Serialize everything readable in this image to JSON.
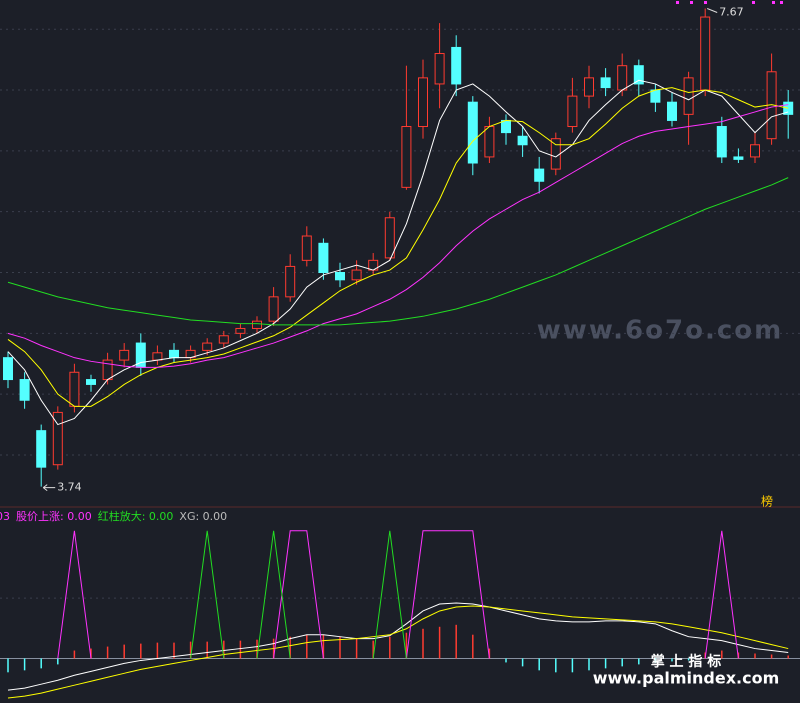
{
  "chart_data": [
    {
      "type": "candlestick",
      "open": [
        4.8,
        4.62,
        4.2,
        3.92,
        4.4,
        4.62,
        4.62,
        4.78,
        4.92,
        4.78,
        4.86,
        4.8,
        4.86,
        4.92,
        5.0,
        5.04,
        5.1,
        5.3,
        5.6,
        5.74,
        5.5,
        5.44,
        5.52,
        5.62,
        6.2,
        6.7,
        7.05,
        7.35,
        6.9,
        6.45,
        6.75,
        6.62,
        6.35,
        6.35,
        6.7,
        6.95,
        7.1,
        7.0,
        7.2,
        7.0,
        6.9,
        6.8,
        7.0,
        6.7,
        6.45,
        6.45,
        6.6,
        6.9
      ],
      "high": [
        4.85,
        4.68,
        4.25,
        4.4,
        4.75,
        4.66,
        4.84,
        4.92,
        5.0,
        4.9,
        4.92,
        4.9,
        4.96,
        5.02,
        5.08,
        5.14,
        5.38,
        5.65,
        5.88,
        5.78,
        5.58,
        5.6,
        5.66,
        6.0,
        7.2,
        7.25,
        7.55,
        7.45,
        6.95,
        6.78,
        6.8,
        6.7,
        6.45,
        6.65,
        7.1,
        7.2,
        7.18,
        7.3,
        7.25,
        7.05,
        6.98,
        7.15,
        7.67,
        6.78,
        6.52,
        6.65,
        7.3,
        7.0
      ],
      "low": [
        4.55,
        4.38,
        3.74,
        3.88,
        4.35,
        4.52,
        4.58,
        4.72,
        4.65,
        4.74,
        4.76,
        4.76,
        4.82,
        4.88,
        4.96,
        5.0,
        5.06,
        5.26,
        5.55,
        5.44,
        5.38,
        5.4,
        5.48,
        5.6,
        6.18,
        6.6,
        6.85,
        6.95,
        6.3,
        6.4,
        6.55,
        6.45,
        6.15,
        6.3,
        6.65,
        6.85,
        6.95,
        6.95,
        6.95,
        6.82,
        6.7,
        6.55,
        6.95,
        6.4,
        6.4,
        6.4,
        6.55,
        6.6
      ],
      "close": [
        4.62,
        4.45,
        3.9,
        4.35,
        4.68,
        4.58,
        4.78,
        4.86,
        4.72,
        4.84,
        4.8,
        4.86,
        4.92,
        4.98,
        5.04,
        5.1,
        5.3,
        5.55,
        5.8,
        5.5,
        5.44,
        5.52,
        5.6,
        5.95,
        6.7,
        7.1,
        7.3,
        7.05,
        6.4,
        6.7,
        6.65,
        6.55,
        6.25,
        6.6,
        6.95,
        7.1,
        7.02,
        7.2,
        7.05,
        6.9,
        6.75,
        7.1,
        7.6,
        6.45,
        6.43,
        6.55,
        7.15,
        6.8
      ],
      "up_color": "#ff3b30",
      "down_color": "#54ffff",
      "series": [
        {
          "color": "#ffffff",
          "values": [
            4.85,
            4.7,
            4.45,
            4.25,
            4.3,
            4.45,
            4.62,
            4.7,
            4.76,
            4.78,
            4.8,
            4.8,
            4.84,
            4.88,
            4.94,
            5.0,
            5.08,
            5.2,
            5.38,
            5.48,
            5.52,
            5.56,
            5.52,
            5.6,
            5.9,
            6.3,
            6.75,
            7.0,
            7.05,
            6.95,
            6.82,
            6.7,
            6.5,
            6.45,
            6.55,
            6.75,
            6.88,
            7.0,
            7.08,
            7.05,
            6.98,
            6.92,
            7.0,
            6.95,
            6.8,
            6.65,
            6.78,
            6.82
          ]
        },
        {
          "color": "#ffff00",
          "values": [
            4.95,
            4.85,
            4.7,
            4.5,
            4.4,
            4.4,
            4.48,
            4.58,
            4.66,
            4.72,
            4.76,
            4.78,
            4.8,
            4.83,
            4.88,
            4.93,
            4.98,
            5.05,
            5.15,
            5.25,
            5.35,
            5.42,
            5.48,
            5.52,
            5.62,
            5.85,
            6.1,
            6.4,
            6.58,
            6.7,
            6.75,
            6.74,
            6.65,
            6.55,
            6.55,
            6.6,
            6.72,
            6.85,
            6.95,
            7.0,
            7.02,
            6.98,
            7.0,
            6.98,
            6.92,
            6.86,
            6.88,
            6.85
          ]
        },
        {
          "color": "#ff33ff",
          "values": [
            5.0,
            4.96,
            4.9,
            4.85,
            4.8,
            4.77,
            4.75,
            4.73,
            4.72,
            4.72,
            4.73,
            4.75,
            4.78,
            4.8,
            4.84,
            4.88,
            4.92,
            4.97,
            5.02,
            5.08,
            5.12,
            5.16,
            5.22,
            5.28,
            5.36,
            5.46,
            5.58,
            5.72,
            5.84,
            5.94,
            6.02,
            6.1,
            6.16,
            6.24,
            6.32,
            6.4,
            6.48,
            6.56,
            6.62,
            6.66,
            6.68,
            6.7,
            6.72,
            6.74,
            6.78,
            6.82,
            6.86,
            6.88
          ]
        },
        {
          "color": "#22dd22",
          "values": [
            5.42,
            5.38,
            5.34,
            5.3,
            5.27,
            5.24,
            5.21,
            5.19,
            5.17,
            5.15,
            5.13,
            5.11,
            5.1,
            5.09,
            5.08,
            5.08,
            5.07,
            5.07,
            5.07,
            5.07,
            5.07,
            5.08,
            5.09,
            5.1,
            5.12,
            5.14,
            5.17,
            5.2,
            5.24,
            5.28,
            5.33,
            5.38,
            5.43,
            5.48,
            5.54,
            5.6,
            5.66,
            5.72,
            5.78,
            5.84,
            5.9,
            5.96,
            6.02,
            6.07,
            6.12,
            6.17,
            6.22,
            6.28
          ]
        }
      ],
      "high_label": "7.67",
      "low_label": "3.74",
      "ylim": [
        3.63,
        7.74
      ],
      "yticks": [
        4.0,
        4.5,
        5.0,
        5.5,
        6.0,
        6.5,
        7.0,
        7.5
      ],
      "grid": true,
      "watermark": "www.6o7o.com",
      "badge": "榜"
    },
    {
      "type": "indicator",
      "legend": [
        {
          "text": "03",
          "color": "#ff33ff"
        },
        {
          "text": "股价上涨: 0.00",
          "color": "#ff33ff"
        },
        {
          "text": "红柱放大: 0.00",
          "color": "#22dd22"
        },
        {
          "text": "XG: 0.00",
          "color": "#bbbbbb"
        }
      ],
      "bars": [
        -14,
        -12,
        -10,
        -6,
        8,
        10,
        12,
        14,
        15,
        16,
        16,
        17,
        17,
        18,
        18,
        19,
        20,
        22,
        24,
        24,
        22,
        20,
        18,
        22,
        26,
        30,
        32,
        34,
        24,
        10,
        -4,
        -8,
        -12,
        -14,
        -14,
        -12,
        -10,
        -8,
        -6,
        -4,
        -3,
        -2,
        6,
        8,
        6,
        5,
        4,
        3
      ],
      "series": [
        {
          "color": "#ffffff",
          "values": [
            -32,
            -30,
            -26,
            -22,
            -17,
            -13,
            -9,
            -5,
            -2,
            0,
            2,
            4,
            6,
            8,
            10,
            12,
            15,
            20,
            24,
            24,
            22,
            20,
            20,
            23,
            35,
            48,
            55,
            56,
            55,
            52,
            48,
            44,
            40,
            38,
            37,
            37,
            38,
            38,
            37,
            35,
            28,
            22,
            20,
            18,
            14,
            10,
            8,
            6
          ]
        },
        {
          "color": "#ffff00",
          "values": [
            -40,
            -38,
            -35,
            -31,
            -27,
            -23,
            -19,
            -15,
            -11,
            -8,
            -5,
            -2,
            1,
            4,
            6,
            8,
            10,
            13,
            16,
            18,
            19,
            20,
            22,
            24,
            30,
            40,
            48,
            52,
            53,
            52,
            50,
            48,
            46,
            44,
            42,
            41,
            40,
            39,
            38,
            37,
            35,
            32,
            29,
            26,
            22,
            18,
            14,
            10
          ]
        },
        {
          "color": "#ff33ff",
          "values": [
            null,
            null,
            null,
            0,
            129,
            0,
            null,
            null,
            null,
            null,
            null,
            null,
            null,
            null,
            null,
            null,
            0,
            129,
            129,
            0,
            null,
            null,
            null,
            null,
            0,
            129,
            129,
            129,
            129,
            0,
            null,
            null,
            null,
            null,
            null,
            null,
            null,
            null,
            null,
            null,
            null,
            null,
            0,
            129,
            0,
            null,
            null,
            null
          ]
        },
        {
          "color": "#22dd22",
          "values": [
            null,
            null,
            null,
            null,
            null,
            null,
            null,
            null,
            null,
            null,
            null,
            0,
            129,
            0,
            null,
            0,
            129,
            0,
            null,
            null,
            null,
            null,
            0,
            129,
            0,
            null,
            null,
            null,
            null,
            null,
            null,
            null,
            null,
            null,
            null,
            null,
            null,
            null,
            null,
            null,
            null,
            null,
            null,
            null,
            null,
            null,
            null,
            null
          ]
        }
      ],
      "ylim": [
        -45,
        150
      ],
      "yticks": [
        0,
        61
      ],
      "watermark_cn": "掌 上 指 标",
      "watermark_url": "www.palmindex.com"
    }
  ]
}
